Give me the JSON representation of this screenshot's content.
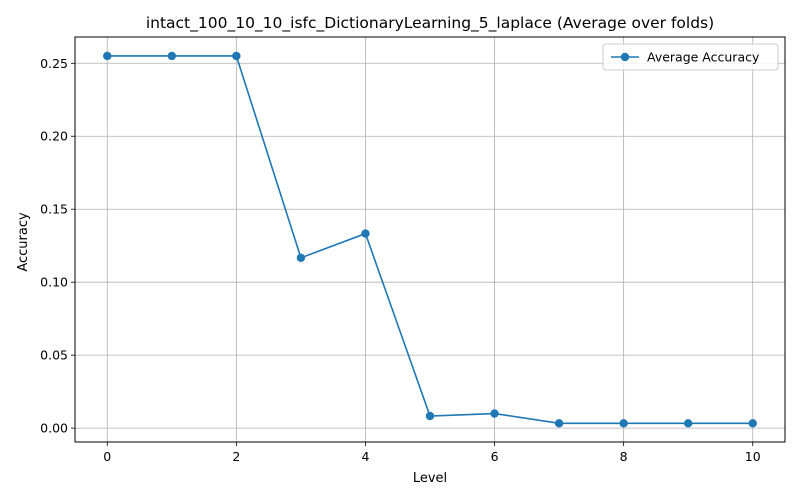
{
  "chart_data": {
    "type": "line",
    "title": "intact_100_10_10_isfc_DictionaryLearning_5_laplace (Average over folds)",
    "xlabel": "Level",
    "ylabel": "Accuracy",
    "xlim": [
      -0.5,
      10.5
    ],
    "ylim": [
      -0.0095,
      0.268
    ],
    "xticks": [
      0,
      2,
      4,
      6,
      8,
      10
    ],
    "xtick_labels": [
      "0",
      "2",
      "4",
      "6",
      "8",
      "10"
    ],
    "yticks": [
      0.0,
      0.05,
      0.1,
      0.15,
      0.2,
      0.25
    ],
    "ytick_labels": [
      "0.00",
      "0.05",
      "0.10",
      "0.15",
      "0.20",
      "0.25"
    ],
    "grid": true,
    "legend_position": "top-right",
    "series": [
      {
        "name": "Average Accuracy",
        "color": "#1f77b4",
        "marker": "circle",
        "x": [
          0,
          1,
          2,
          3,
          4,
          5,
          6,
          7,
          8,
          9,
          10
        ],
        "y": [
          0.255,
          0.255,
          0.255,
          0.1167,
          0.1333,
          0.0083,
          0.01,
          0.0033,
          0.0033,
          0.0033,
          0.0033
        ]
      }
    ]
  }
}
